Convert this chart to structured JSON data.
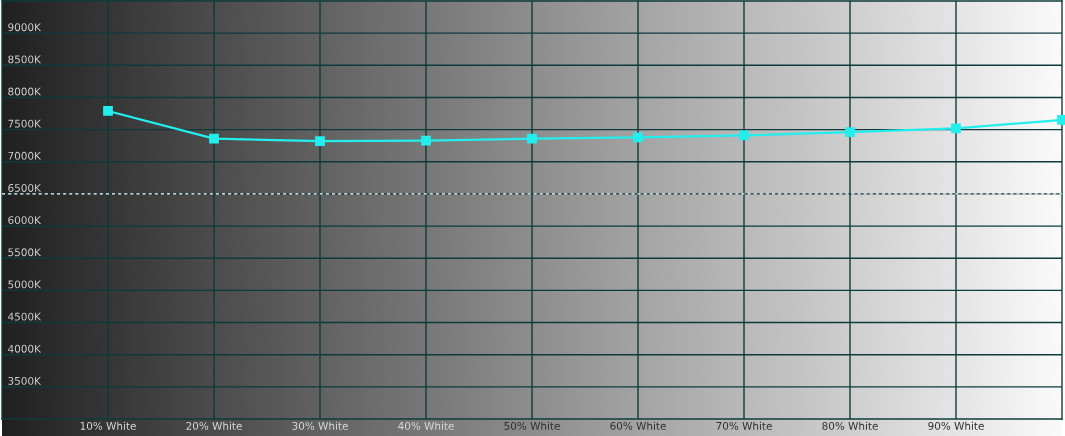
{
  "chart_data": {
    "type": "line",
    "x": [
      10,
      20,
      30,
      40,
      50,
      60,
      70,
      80,
      90,
      100
    ],
    "series": [
      {
        "color": "#22eeee",
        "values": [
          7790,
          7360,
          7320,
          7330,
          7360,
          7380,
          7410,
          7460,
          7520,
          7650
        ]
      }
    ],
    "xlim": [
      0,
      100
    ],
    "xticks": [
      {
        "value": 10,
        "label": "10% White"
      },
      {
        "value": 20,
        "label": "20% White"
      },
      {
        "value": 30,
        "label": "30% White"
      },
      {
        "value": 40,
        "label": "40% White"
      },
      {
        "value": 50,
        "label": "50% White"
      },
      {
        "value": 60,
        "label": "60% White"
      },
      {
        "value": 70,
        "label": "70% White"
      },
      {
        "value": 80,
        "label": "80% White"
      },
      {
        "value": 90,
        "label": "90% White"
      }
    ],
    "ylim": [
      3000,
      9500
    ],
    "yticks": [
      {
        "value": 3500,
        "label": "3500K"
      },
      {
        "value": 4000,
        "label": "4000K"
      },
      {
        "value": 4500,
        "label": "4500K"
      },
      {
        "value": 5000,
        "label": "5000K"
      },
      {
        "value": 5500,
        "label": "5500K"
      },
      {
        "value": 6000,
        "label": "6000K"
      },
      {
        "value": 6500,
        "label": "6500K"
      },
      {
        "value": 7000,
        "label": "7000K"
      },
      {
        "value": 7500,
        "label": "7500K"
      },
      {
        "value": 8000,
        "label": "8000K"
      },
      {
        "value": 8500,
        "label": "8500K"
      },
      {
        "value": 9000,
        "label": "9000K"
      }
    ],
    "grid": true,
    "marker": "square",
    "line_style": "solid",
    "ref_lines": [
      {
        "axis": "y",
        "value": 6500,
        "color": "#ffffff",
        "line_style": "dashed"
      }
    ]
  }
}
